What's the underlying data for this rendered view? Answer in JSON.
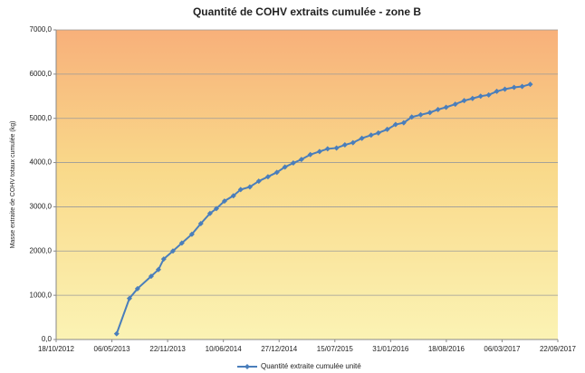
{
  "chart_data": {
    "type": "line",
    "title": "Quantité de COHV extraits cumulée - zone B",
    "y_label": "Masse extraite de COHV totaux cumulée (kg)",
    "grid": true,
    "legend": "bottom",
    "xlim": [
      "2012-10-18",
      "2017-09-22"
    ],
    "xticks": [
      {
        "value": "2012-10-18",
        "label": "18/10/2012"
      },
      {
        "value": "2013-05-06",
        "label": "06/05/2013"
      },
      {
        "value": "2013-11-22",
        "label": "22/11/2013"
      },
      {
        "value": "2014-06-10",
        "label": "10/06/2014"
      },
      {
        "value": "2014-12-27",
        "label": "27/12/2014"
      },
      {
        "value": "2015-07-15",
        "label": "15/07/2015"
      },
      {
        "value": "2016-01-31",
        "label": "31/01/2016"
      },
      {
        "value": "2016-08-18",
        "label": "18/08/2016"
      },
      {
        "value": "2017-03-06",
        "label": "06/03/2017"
      },
      {
        "value": "2017-09-22",
        "label": "22/09/2017"
      }
    ],
    "ylim": [
      0,
      7000
    ],
    "yticks": [
      {
        "value": 0,
        "label": "0,0"
      },
      {
        "value": 1000,
        "label": "1000,0"
      },
      {
        "value": 2000,
        "label": "2000,0"
      },
      {
        "value": 3000,
        "label": "3000,0"
      },
      {
        "value": 4000,
        "label": "4000,0"
      },
      {
        "value": 5000,
        "label": "5000,0"
      },
      {
        "value": 6000,
        "label": "6000,0"
      },
      {
        "value": 7000,
        "label": "7000,0"
      }
    ],
    "x": [
      "2013-05-23",
      "2013-07-08",
      "2013-08-06",
      "2013-09-24",
      "2013-10-20",
      "2013-11-08",
      "2013-12-11",
      "2014-01-12",
      "2014-02-17",
      "2014-03-21",
      "2014-04-23",
      "2014-05-16",
      "2014-06-14",
      "2014-07-16",
      "2014-08-11",
      "2014-09-13",
      "2014-10-15",
      "2014-11-17",
      "2014-12-19",
      "2015-01-17",
      "2015-02-16",
      "2015-03-17",
      "2015-04-18",
      "2015-05-21",
      "2015-06-19",
      "2015-07-21",
      "2015-08-20",
      "2015-09-18",
      "2015-10-20",
      "2015-11-22",
      "2015-12-18",
      "2016-01-19",
      "2016-02-18",
      "2016-03-18",
      "2016-04-16",
      "2016-05-18",
      "2016-06-20",
      "2016-07-19",
      "2016-08-17",
      "2016-09-19",
      "2016-10-21",
      "2016-11-20",
      "2016-12-19",
      "2017-01-17",
      "2017-02-15",
      "2017-03-16",
      "2017-04-18",
      "2017-05-17",
      "2017-06-15"
    ],
    "series": [
      {
        "name": "Quantité extraite cumulée unité",
        "color": "#4a7ebb",
        "values": [
          130,
          930,
          1150,
          1430,
          1580,
          1820,
          2000,
          2180,
          2380,
          2620,
          2850,
          2960,
          3130,
          3250,
          3390,
          3450,
          3580,
          3680,
          3780,
          3900,
          3990,
          4070,
          4180,
          4250,
          4310,
          4330,
          4400,
          4450,
          4550,
          4620,
          4670,
          4750,
          4860,
          4900,
          5030,
          5080,
          5130,
          5200,
          5250,
          5320,
          5400,
          5450,
          5500,
          5530,
          5610,
          5660,
          5700,
          5720,
          5770
        ]
      }
    ]
  }
}
